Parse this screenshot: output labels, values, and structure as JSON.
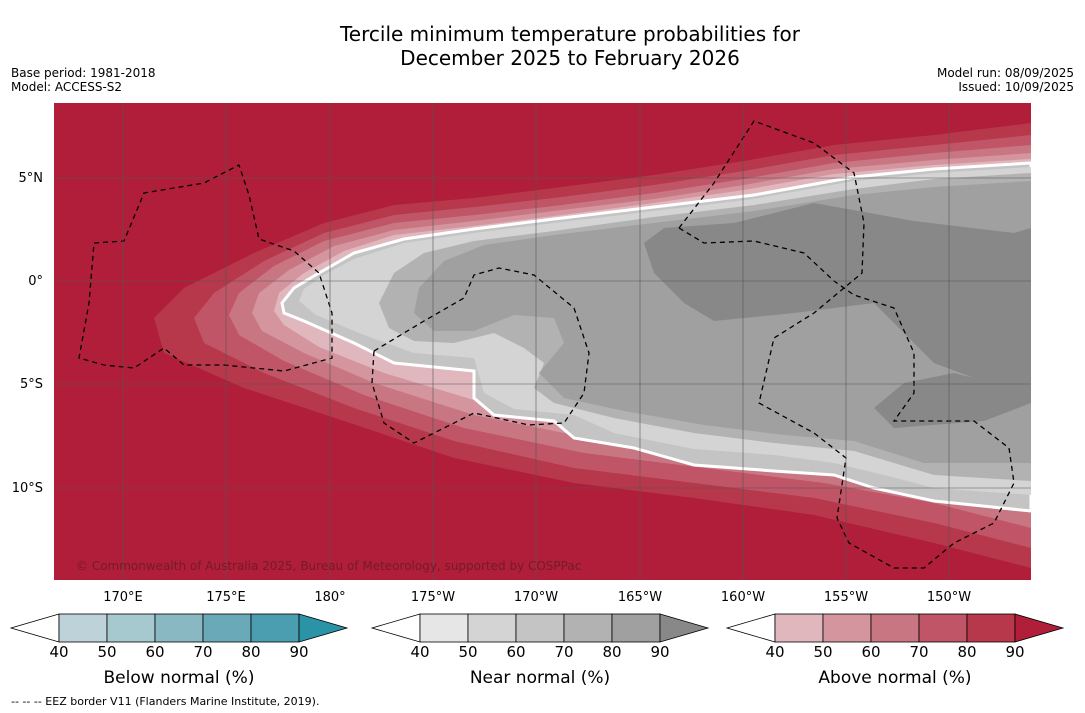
{
  "title_line1": "Tercile minimum temperature probabilities for",
  "title_line2": "December 2025 to February 2026",
  "meta_left": [
    "Base period: 1981-2018",
    "Model: ACCESS-S2"
  ],
  "meta_right": [
    "Model run: 08/09/2025",
    "Issued: 10/09/2025"
  ],
  "copyright": "© Commonwealth of Australia 2025, Bureau of Meteorology, supported by COSPPac",
  "lat_labels": [
    "5°N",
    "0°",
    "5°S",
    "10°S"
  ],
  "lon_labels": [
    "170°E",
    "175°E",
    "180°",
    "175°W",
    "170°W",
    "165°W",
    "160°W",
    "155°W",
    "150°W"
  ],
  "legends": [
    {
      "title": "Below normal (%)",
      "ticks": [
        "40",
        "50",
        "60",
        "70",
        "80",
        "90"
      ],
      "colors": [
        "#bed2da",
        "#a6c8cf",
        "#89b8c3",
        "#6aaab8",
        "#4a9eaf",
        "#2a93a6"
      ]
    },
    {
      "title": "Near normal (%)",
      "ticks": [
        "40",
        "50",
        "60",
        "70",
        "80",
        "90"
      ],
      "colors": [
        "#e6e6e6",
        "#d4d4d4",
        "#c4c4c4",
        "#b2b2b2",
        "#a0a0a0",
        "#888888"
      ]
    },
    {
      "title": "Above normal (%)",
      "ticks": [
        "40",
        "50",
        "60",
        "70",
        "80",
        "90"
      ],
      "colors": [
        "#e1b7be",
        "#d5959f",
        "#c97683",
        "#bf5566",
        "#b6384a",
        "#b01e3a"
      ]
    }
  ],
  "footnote": "--  --  -- EEZ border V11 (Flanders Marine Institute, 2019)."
}
